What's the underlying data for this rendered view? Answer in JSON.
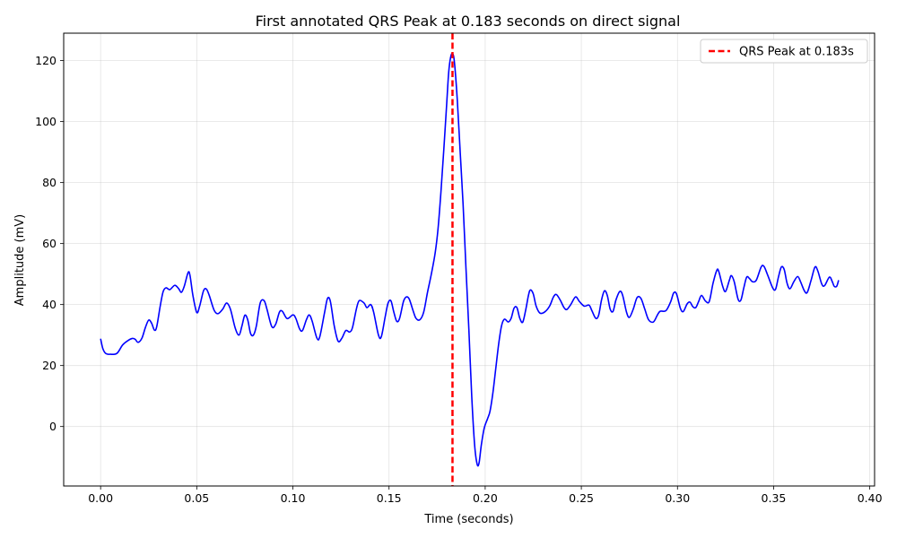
{
  "chart_data": {
    "type": "line",
    "title": "First annotated QRS Peak at 0.183 seconds on direct signal",
    "xlabel": "Time (seconds)",
    "ylabel": "Amplitude (mV)",
    "xlim": [
      -0.0192,
      0.4025
    ],
    "ylim": [
      -19.5,
      129
    ],
    "xticks": [
      0.0,
      0.05,
      0.1,
      0.15,
      0.2,
      0.25,
      0.3,
      0.35,
      0.4
    ],
    "xtick_labels": [
      "0.00",
      "0.05",
      "0.10",
      "0.15",
      "0.20",
      "0.25",
      "0.30",
      "0.35",
      "0.40"
    ],
    "yticks": [
      0,
      20,
      40,
      60,
      80,
      100,
      120
    ],
    "ytick_labels": [
      "0",
      "20",
      "40",
      "60",
      "80",
      "100",
      "120"
    ],
    "grid": true,
    "legend_position": "top-right",
    "series": [
      {
        "color": "#0000ff",
        "points": [
          [
            0.0,
            28.8
          ],
          [
            0.0012,
            25.5
          ],
          [
            0.0028,
            23.9
          ],
          [
            0.005,
            23.7
          ],
          [
            0.0085,
            24.0
          ],
          [
            0.0115,
            26.8
          ],
          [
            0.0145,
            28.3
          ],
          [
            0.0165,
            28.9
          ],
          [
            0.018,
            28.6
          ],
          [
            0.0195,
            27.6
          ],
          [
            0.0215,
            29.0
          ],
          [
            0.0233,
            32.5
          ],
          [
            0.025,
            34.9
          ],
          [
            0.0265,
            33.9
          ],
          [
            0.028,
            31.6
          ],
          [
            0.0292,
            32.8
          ],
          [
            0.031,
            39.5
          ],
          [
            0.0325,
            44.2
          ],
          [
            0.034,
            45.5
          ],
          [
            0.036,
            44.9
          ],
          [
            0.0385,
            46.3
          ],
          [
            0.0405,
            45.3
          ],
          [
            0.042,
            44.0
          ],
          [
            0.0435,
            46.0
          ],
          [
            0.0455,
            50.5
          ],
          [
            0.0465,
            49.5
          ],
          [
            0.048,
            43.0
          ],
          [
            0.05,
            37.4
          ],
          [
            0.0515,
            39.5
          ],
          [
            0.0535,
            44.5
          ],
          [
            0.055,
            45.1
          ],
          [
            0.0565,
            43.0
          ],
          [
            0.059,
            38.2
          ],
          [
            0.061,
            37.0
          ],
          [
            0.0635,
            38.5
          ],
          [
            0.0655,
            40.5
          ],
          [
            0.0675,
            38.5
          ],
          [
            0.07,
            32.3
          ],
          [
            0.072,
            30.0
          ],
          [
            0.0735,
            33.0
          ],
          [
            0.075,
            36.5
          ],
          [
            0.0765,
            35.0
          ],
          [
            0.078,
            30.5
          ],
          [
            0.0795,
            30.0
          ],
          [
            0.081,
            33.0
          ],
          [
            0.083,
            40.5
          ],
          [
            0.085,
            41.3
          ],
          [
            0.0865,
            38.5
          ],
          [
            0.089,
            32.8
          ],
          [
            0.091,
            33.5
          ],
          [
            0.093,
            37.5
          ],
          [
            0.0945,
            37.8
          ],
          [
            0.097,
            35.4
          ],
          [
            0.1,
            36.6
          ],
          [
            0.1015,
            35.5
          ],
          [
            0.1035,
            32.0
          ],
          [
            0.105,
            31.5
          ],
          [
            0.107,
            35.0
          ],
          [
            0.1085,
            36.6
          ],
          [
            0.11,
            34.6
          ],
          [
            0.1125,
            29.0
          ],
          [
            0.114,
            29.5
          ],
          [
            0.1165,
            37.5
          ],
          [
            0.118,
            42.0
          ],
          [
            0.1195,
            41.0
          ],
          [
            0.1215,
            33.0
          ],
          [
            0.1235,
            28.0
          ],
          [
            0.1255,
            29.0
          ],
          [
            0.1275,
            31.5
          ],
          [
            0.1295,
            31.0
          ],
          [
            0.131,
            32.5
          ],
          [
            0.133,
            38.5
          ],
          [
            0.1345,
            41.3
          ],
          [
            0.137,
            40.5
          ],
          [
            0.1385,
            39.0
          ],
          [
            0.1405,
            40.0
          ],
          [
            0.142,
            37.5
          ],
          [
            0.1445,
            30.0
          ],
          [
            0.146,
            29.5
          ],
          [
            0.148,
            36.0
          ],
          [
            0.1495,
            40.5
          ],
          [
            0.151,
            41.2
          ],
          [
            0.1525,
            37.5
          ],
          [
            0.154,
            34.5
          ],
          [
            0.1555,
            35.5
          ],
          [
            0.1575,
            41.0
          ],
          [
            0.159,
            42.5
          ],
          [
            0.1605,
            41.8
          ],
          [
            0.1625,
            38.0
          ],
          [
            0.164,
            35.5
          ],
          [
            0.166,
            35.0
          ],
          [
            0.168,
            37.5
          ],
          [
            0.17,
            44.0
          ],
          [
            0.172,
            50.0
          ],
          [
            0.174,
            57.0
          ],
          [
            0.1755,
            65.0
          ],
          [
            0.177,
            77.0
          ],
          [
            0.1785,
            91.0
          ],
          [
            0.18,
            106.0
          ],
          [
            0.181,
            116.0
          ],
          [
            0.182,
            121.0
          ],
          [
            0.183,
            122.3
          ],
          [
            0.184,
            119.5
          ],
          [
            0.1855,
            107.0
          ],
          [
            0.187,
            90.0
          ],
          [
            0.1885,
            73.0
          ],
          [
            0.19,
            52.0
          ],
          [
            0.1915,
            32.0
          ],
          [
            0.193,
            10.0
          ],
          [
            0.1945,
            -6.0
          ],
          [
            0.1958,
            -12.3
          ],
          [
            0.1968,
            -12.0
          ],
          [
            0.198,
            -6.0
          ],
          [
            0.1995,
            -0.5
          ],
          [
            0.2012,
            2.5
          ],
          [
            0.2025,
            5.0
          ],
          [
            0.204,
            11.0
          ],
          [
            0.2055,
            19.0
          ],
          [
            0.207,
            27.0
          ],
          [
            0.2085,
            33.0
          ],
          [
            0.21,
            35.2
          ],
          [
            0.212,
            34.3
          ],
          [
            0.2135,
            35.5
          ],
          [
            0.215,
            38.8
          ],
          [
            0.2165,
            39.0
          ],
          [
            0.218,
            35.5
          ],
          [
            0.2195,
            34.2
          ],
          [
            0.221,
            38.0
          ],
          [
            0.2225,
            43.0
          ],
          [
            0.2235,
            44.8
          ],
          [
            0.225,
            43.5
          ],
          [
            0.2265,
            39.5
          ],
          [
            0.2285,
            37.2
          ],
          [
            0.231,
            37.6
          ],
          [
            0.2335,
            39.5
          ],
          [
            0.2355,
            42.5
          ],
          [
            0.237,
            43.3
          ],
          [
            0.239,
            41.5
          ],
          [
            0.241,
            39.0
          ],
          [
            0.2425,
            38.4
          ],
          [
            0.2445,
            40.0
          ],
          [
            0.247,
            42.5
          ],
          [
            0.249,
            41.0
          ],
          [
            0.2515,
            39.5
          ],
          [
            0.254,
            39.8
          ],
          [
            0.2555,
            38.0
          ],
          [
            0.2575,
            35.5
          ],
          [
            0.259,
            36.5
          ],
          [
            0.2605,
            41.5
          ],
          [
            0.262,
            44.5
          ],
          [
            0.2635,
            43.0
          ],
          [
            0.265,
            38.5
          ],
          [
            0.2665,
            37.8
          ],
          [
            0.268,
            41.5
          ],
          [
            0.27,
            44.3
          ],
          [
            0.2715,
            43.0
          ],
          [
            0.2735,
            37.5
          ],
          [
            0.275,
            35.8
          ],
          [
            0.277,
            38.5
          ],
          [
            0.279,
            42.3
          ],
          [
            0.281,
            42.0
          ],
          [
            0.283,
            38.5
          ],
          [
            0.285,
            35.0
          ],
          [
            0.2875,
            34.3
          ],
          [
            0.2895,
            36.5
          ],
          [
            0.291,
            37.8
          ],
          [
            0.294,
            38.0
          ],
          [
            0.2965,
            41.0
          ],
          [
            0.298,
            43.8
          ],
          [
            0.2995,
            43.5
          ],
          [
            0.3015,
            38.8
          ],
          [
            0.303,
            37.7
          ],
          [
            0.305,
            40.2
          ],
          [
            0.3065,
            40.8
          ],
          [
            0.308,
            39.3
          ],
          [
            0.3095,
            39.0
          ],
          [
            0.311,
            41.0
          ],
          [
            0.3125,
            43.0
          ],
          [
            0.3145,
            41.2
          ],
          [
            0.3165,
            41.0
          ],
          [
            0.3185,
            47.0
          ],
          [
            0.3205,
            51.3
          ],
          [
            0.3215,
            50.8
          ],
          [
            0.3235,
            46.0
          ],
          [
            0.325,
            44.3
          ],
          [
            0.327,
            48.0
          ],
          [
            0.328,
            49.5
          ],
          [
            0.3295,
            47.5
          ],
          [
            0.3315,
            41.8
          ],
          [
            0.333,
            41.5
          ],
          [
            0.3345,
            45.5
          ],
          [
            0.336,
            49.0
          ],
          [
            0.3375,
            48.5
          ],
          [
            0.339,
            47.5
          ],
          [
            0.341,
            48.0
          ],
          [
            0.3435,
            52.3
          ],
          [
            0.345,
            52.5
          ],
          [
            0.347,
            49.5
          ],
          [
            0.3495,
            45.5
          ],
          [
            0.351,
            45.0
          ],
          [
            0.3525,
            49.0
          ],
          [
            0.354,
            52.3
          ],
          [
            0.3555,
            51.5
          ],
          [
            0.357,
            47.0
          ],
          [
            0.3585,
            45.2
          ],
          [
            0.3605,
            47.5
          ],
          [
            0.3625,
            49.2
          ],
          [
            0.364,
            47.5
          ],
          [
            0.366,
            44.5
          ],
          [
            0.3675,
            44.0
          ],
          [
            0.3695,
            48.0
          ],
          [
            0.3715,
            52.3
          ],
          [
            0.373,
            51.0
          ],
          [
            0.375,
            46.8
          ],
          [
            0.3765,
            46.2
          ],
          [
            0.379,
            49.0
          ],
          [
            0.3805,
            47.5
          ],
          [
            0.3815,
            46.0
          ],
          [
            0.3828,
            46.0
          ],
          [
            0.3838,
            48.0
          ]
        ]
      }
    ],
    "annotations": [
      {
        "type": "vline",
        "x": 0.183,
        "color": "#ff0000",
        "style": "dashed",
        "label": "QRS Peak at 0.183s"
      }
    ]
  }
}
